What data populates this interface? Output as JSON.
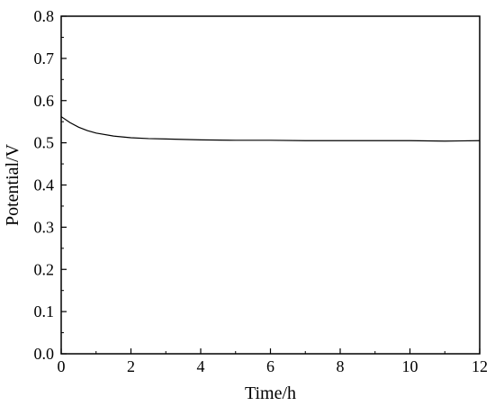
{
  "chart_data": {
    "type": "line",
    "title": "",
    "xlabel": "Time/h",
    "ylabel": "Potential/V",
    "xlim": [
      0,
      12
    ],
    "ylim": [
      0.0,
      0.8
    ],
    "xticks": [
      0,
      2,
      4,
      6,
      8,
      10,
      12
    ],
    "xtick_labels": [
      "0",
      "2",
      "4",
      "6",
      "8",
      "10",
      "12"
    ],
    "yticks": [
      0.0,
      0.1,
      0.2,
      0.3,
      0.4,
      0.5,
      0.6,
      0.7,
      0.8
    ],
    "ytick_labels": [
      "0.0",
      "0.1",
      "0.2",
      "0.3",
      "0.4",
      "0.5",
      "0.6",
      "0.7",
      "0.8"
    ],
    "grid": false,
    "legend": "none",
    "line_color": "#000000",
    "series": [
      {
        "x": [
          0,
          0.25,
          0.5,
          0.75,
          1.0,
          1.5,
          2.0,
          2.5,
          3.0,
          4.0,
          5.0,
          6.0,
          7.0,
          8.0,
          9.0,
          10.0,
          11.0,
          12.0
        ],
        "values": [
          0.562,
          0.548,
          0.537,
          0.529,
          0.523,
          0.516,
          0.512,
          0.51,
          0.509,
          0.507,
          0.506,
          0.506,
          0.505,
          0.505,
          0.505,
          0.505,
          0.504,
          0.505
        ]
      }
    ]
  }
}
